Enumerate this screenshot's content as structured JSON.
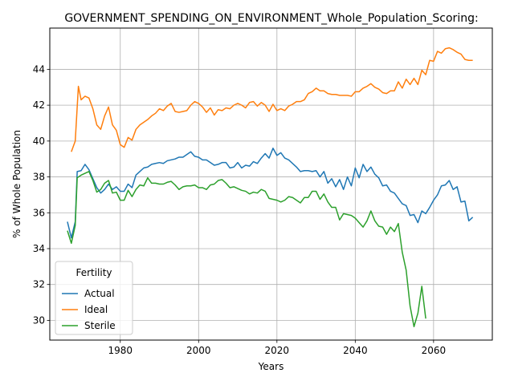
{
  "chart_data": {
    "type": "line",
    "title": "GOVERNMENT_SPENDING_ON_ENVIRONMENT_Whole_Population_Scoring:",
    "xlabel": "Years",
    "ylabel": "% of Whole Population",
    "xlim": [
      1962,
      2075
    ],
    "ylim": [
      28.9,
      46.3
    ],
    "xticks": [
      1980,
      2000,
      2020,
      2040,
      2060
    ],
    "yticks": [
      30,
      32,
      34,
      36,
      38,
      40,
      42,
      44
    ],
    "grid": true,
    "legend": {
      "title": "Fertility",
      "placement": "lower-left"
    },
    "series": [
      {
        "name": "Actual",
        "color": "#1f77b4",
        "points": [
          [
            1966.5,
            35.5
          ],
          [
            1967.5,
            34.6
          ],
          [
            1968.5,
            35.5
          ],
          [
            1969,
            38.3
          ],
          [
            1970,
            38.35
          ],
          [
            1971,
            38.7
          ],
          [
            1972,
            38.4
          ],
          [
            1973,
            37.9
          ],
          [
            1974,
            37.4
          ],
          [
            1975,
            37.1
          ],
          [
            1976,
            37.3
          ],
          [
            1977,
            37.6
          ],
          [
            1978,
            37.3
          ],
          [
            1979,
            37.45
          ],
          [
            1980,
            37.2
          ],
          [
            1981,
            37.2
          ],
          [
            1982,
            37.6
          ],
          [
            1983,
            37.4
          ],
          [
            1984,
            38.1
          ],
          [
            1985,
            38.3
          ],
          [
            1986,
            38.5
          ],
          [
            1987,
            38.55
          ],
          [
            1988,
            38.7
          ],
          [
            1989,
            38.75
          ],
          [
            1990,
            38.8
          ],
          [
            1991,
            38.75
          ],
          [
            1992,
            38.9
          ],
          [
            1993,
            38.95
          ],
          [
            1994,
            39.0
          ],
          [
            1995,
            39.1
          ],
          [
            1996,
            39.1
          ],
          [
            1997,
            39.25
          ],
          [
            1998,
            39.4
          ],
          [
            1999,
            39.15
          ],
          [
            2000,
            39.1
          ],
          [
            2001,
            38.95
          ],
          [
            2002,
            38.95
          ],
          [
            2003,
            38.8
          ],
          [
            2004,
            38.65
          ],
          [
            2005,
            38.7
          ],
          [
            2006,
            38.8
          ],
          [
            2007,
            38.8
          ],
          [
            2008,
            38.5
          ],
          [
            2009,
            38.55
          ],
          [
            2010,
            38.8
          ],
          [
            2011,
            38.5
          ],
          [
            2012,
            38.65
          ],
          [
            2013,
            38.6
          ],
          [
            2014,
            38.85
          ],
          [
            2015,
            38.75
          ],
          [
            2016,
            39.05
          ],
          [
            2017,
            39.3
          ],
          [
            2018,
            39.05
          ],
          [
            2019,
            39.6
          ],
          [
            2020,
            39.2
          ],
          [
            2021,
            39.35
          ],
          [
            2022,
            39.05
          ],
          [
            2023,
            38.95
          ],
          [
            2024,
            38.75
          ],
          [
            2025,
            38.55
          ],
          [
            2026,
            38.3
          ],
          [
            2027,
            38.35
          ],
          [
            2028,
            38.35
          ],
          [
            2029,
            38.3
          ],
          [
            2030,
            38.35
          ],
          [
            2031,
            38.0
          ],
          [
            2032,
            38.3
          ],
          [
            2033,
            37.65
          ],
          [
            2034,
            37.9
          ],
          [
            2035,
            37.45
          ],
          [
            2036,
            37.85
          ],
          [
            2037,
            37.3
          ],
          [
            2038,
            38.0
          ],
          [
            2039,
            37.5
          ],
          [
            2040,
            38.5
          ],
          [
            2041,
            37.95
          ],
          [
            2042,
            38.7
          ],
          [
            2043,
            38.3
          ],
          [
            2044,
            38.55
          ],
          [
            2045,
            38.15
          ],
          [
            2046,
            37.95
          ],
          [
            2047,
            37.5
          ],
          [
            2048,
            37.55
          ],
          [
            2049,
            37.2
          ],
          [
            2050,
            37.1
          ],
          [
            2051,
            36.8
          ],
          [
            2052,
            36.5
          ],
          [
            2053,
            36.4
          ],
          [
            2054,
            35.85
          ],
          [
            2055,
            35.9
          ],
          [
            2056,
            35.45
          ],
          [
            2057,
            36.1
          ],
          [
            2058,
            35.95
          ],
          [
            2059,
            36.3
          ],
          [
            2060,
            36.7
          ],
          [
            2061,
            37.0
          ],
          [
            2062,
            37.5
          ],
          [
            2063,
            37.55
          ],
          [
            2064,
            37.8
          ],
          [
            2065,
            37.3
          ],
          [
            2066,
            37.45
          ],
          [
            2067,
            36.6
          ],
          [
            2068,
            36.65
          ],
          [
            2069,
            35.55
          ],
          [
            2070,
            35.75
          ]
        ]
      },
      {
        "name": "Ideal",
        "color": "#ff7f0e",
        "points": [
          [
            1967.5,
            39.4
          ],
          [
            1968.5,
            40.0
          ],
          [
            1969.3,
            43.05
          ],
          [
            1970,
            42.3
          ],
          [
            1971,
            42.5
          ],
          [
            1972,
            42.4
          ],
          [
            1973,
            41.8
          ],
          [
            1974,
            40.9
          ],
          [
            1975,
            40.65
          ],
          [
            1976,
            41.4
          ],
          [
            1977,
            41.9
          ],
          [
            1978,
            40.9
          ],
          [
            1979,
            40.6
          ],
          [
            1980,
            39.8
          ],
          [
            1981,
            39.65
          ],
          [
            1982,
            40.2
          ],
          [
            1983,
            40.05
          ],
          [
            1984,
            40.65
          ],
          [
            1985,
            40.9
          ],
          [
            1986,
            41.05
          ],
          [
            1987,
            41.2
          ],
          [
            1988,
            41.4
          ],
          [
            1989,
            41.55
          ],
          [
            1990,
            41.8
          ],
          [
            1991,
            41.7
          ],
          [
            1992,
            41.95
          ],
          [
            1993,
            42.1
          ],
          [
            1994,
            41.65
          ],
          [
            1995,
            41.6
          ],
          [
            1996,
            41.65
          ],
          [
            1997,
            41.7
          ],
          [
            1998,
            42.0
          ],
          [
            1999,
            42.2
          ],
          [
            2000,
            42.1
          ],
          [
            2001,
            41.9
          ],
          [
            2002,
            41.6
          ],
          [
            2003,
            41.85
          ],
          [
            2004,
            41.45
          ],
          [
            2005,
            41.75
          ],
          [
            2006,
            41.7
          ],
          [
            2007,
            41.85
          ],
          [
            2008,
            41.8
          ],
          [
            2009,
            42.0
          ],
          [
            2010,
            42.1
          ],
          [
            2011,
            42.0
          ],
          [
            2012,
            41.85
          ],
          [
            2013,
            42.15
          ],
          [
            2014,
            42.2
          ],
          [
            2015,
            41.95
          ],
          [
            2016,
            42.15
          ],
          [
            2017,
            42.0
          ],
          [
            2018,
            41.65
          ],
          [
            2019,
            42.05
          ],
          [
            2020,
            41.7
          ],
          [
            2021,
            41.8
          ],
          [
            2022,
            41.7
          ],
          [
            2023,
            41.95
          ],
          [
            2024,
            42.05
          ],
          [
            2025,
            42.2
          ],
          [
            2026,
            42.2
          ],
          [
            2027,
            42.3
          ],
          [
            2028,
            42.65
          ],
          [
            2029,
            42.75
          ],
          [
            2030,
            42.95
          ],
          [
            2031,
            42.8
          ],
          [
            2032,
            42.8
          ],
          [
            2033,
            42.65
          ],
          [
            2034,
            42.6
          ],
          [
            2035,
            42.6
          ],
          [
            2036,
            42.55
          ],
          [
            2037,
            42.55
          ],
          [
            2038,
            42.55
          ],
          [
            2039,
            42.5
          ],
          [
            2040,
            42.75
          ],
          [
            2041,
            42.75
          ],
          [
            2042,
            42.95
          ],
          [
            2043,
            43.05
          ],
          [
            2044,
            43.2
          ],
          [
            2045,
            43.0
          ],
          [
            2046,
            42.9
          ],
          [
            2047,
            42.7
          ],
          [
            2048,
            42.65
          ],
          [
            2049,
            42.8
          ],
          [
            2050,
            42.8
          ],
          [
            2051,
            43.3
          ],
          [
            2052,
            42.95
          ],
          [
            2053,
            43.45
          ],
          [
            2054,
            43.15
          ],
          [
            2055,
            43.5
          ],
          [
            2056,
            43.15
          ],
          [
            2057,
            43.95
          ],
          [
            2058,
            43.7
          ],
          [
            2059,
            44.5
          ],
          [
            2060,
            44.45
          ],
          [
            2061,
            45.0
          ],
          [
            2062,
            44.9
          ],
          [
            2063,
            45.15
          ],
          [
            2064,
            45.2
          ],
          [
            2065,
            45.1
          ],
          [
            2066,
            44.95
          ],
          [
            2067,
            44.85
          ],
          [
            2068,
            44.55
          ],
          [
            2069,
            44.5
          ],
          [
            2070,
            44.5
          ]
        ]
      },
      {
        "name": "Sterile",
        "color": "#2ca02c",
        "points": [
          [
            1966.5,
            35.0
          ],
          [
            1967.5,
            34.3
          ],
          [
            1968.5,
            35.3
          ],
          [
            1969,
            37.95
          ],
          [
            1970,
            38.1
          ],
          [
            1971,
            38.2
          ],
          [
            1972,
            38.3
          ],
          [
            1973,
            37.8
          ],
          [
            1974,
            37.15
          ],
          [
            1975,
            37.3
          ],
          [
            1976,
            37.65
          ],
          [
            1977,
            37.8
          ],
          [
            1978,
            37.1
          ],
          [
            1979,
            37.15
          ],
          [
            1980,
            36.7
          ],
          [
            1981,
            36.7
          ],
          [
            1982,
            37.25
          ],
          [
            1983,
            36.9
          ],
          [
            1984,
            37.3
          ],
          [
            1985,
            37.55
          ],
          [
            1986,
            37.5
          ],
          [
            1987,
            37.95
          ],
          [
            1988,
            37.65
          ],
          [
            1989,
            37.65
          ],
          [
            1990,
            37.6
          ],
          [
            1991,
            37.6
          ],
          [
            1992,
            37.7
          ],
          [
            1993,
            37.75
          ],
          [
            1994,
            37.55
          ],
          [
            1995,
            37.3
          ],
          [
            1996,
            37.45
          ],
          [
            1997,
            37.5
          ],
          [
            1998,
            37.5
          ],
          [
            1999,
            37.55
          ],
          [
            2000,
            37.4
          ],
          [
            2001,
            37.4
          ],
          [
            2002,
            37.3
          ],
          [
            2003,
            37.55
          ],
          [
            2004,
            37.6
          ],
          [
            2005,
            37.8
          ],
          [
            2006,
            37.85
          ],
          [
            2007,
            37.65
          ],
          [
            2008,
            37.4
          ],
          [
            2009,
            37.45
          ],
          [
            2010,
            37.35
          ],
          [
            2011,
            37.25
          ],
          [
            2012,
            37.2
          ],
          [
            2013,
            37.05
          ],
          [
            2014,
            37.15
          ],
          [
            2015,
            37.1
          ],
          [
            2016,
            37.3
          ],
          [
            2017,
            37.2
          ],
          [
            2018,
            36.8
          ],
          [
            2019,
            36.75
          ],
          [
            2020,
            36.7
          ],
          [
            2021,
            36.6
          ],
          [
            2022,
            36.7
          ],
          [
            2023,
            36.9
          ],
          [
            2024,
            36.85
          ],
          [
            2025,
            36.7
          ],
          [
            2026,
            36.55
          ],
          [
            2027,
            36.85
          ],
          [
            2028,
            36.85
          ],
          [
            2029,
            37.2
          ],
          [
            2030,
            37.2
          ],
          [
            2031,
            36.75
          ],
          [
            2032,
            37.05
          ],
          [
            2033,
            36.6
          ],
          [
            2034,
            36.3
          ],
          [
            2035,
            36.3
          ],
          [
            2036,
            35.6
          ],
          [
            2037,
            35.95
          ],
          [
            2038,
            35.9
          ],
          [
            2039,
            35.85
          ],
          [
            2040,
            35.7
          ],
          [
            2041,
            35.45
          ],
          [
            2042,
            35.2
          ],
          [
            2043,
            35.55
          ],
          [
            2044,
            36.1
          ],
          [
            2045,
            35.55
          ],
          [
            2046,
            35.25
          ],
          [
            2047,
            35.2
          ],
          [
            2048,
            34.8
          ],
          [
            2049,
            35.2
          ],
          [
            2050,
            34.95
          ],
          [
            2051,
            35.4
          ],
          [
            2052,
            33.8
          ],
          [
            2053,
            32.8
          ],
          [
            2054,
            30.8
          ],
          [
            2055,
            29.65
          ],
          [
            2056,
            30.4
          ],
          [
            2057,
            31.9
          ],
          [
            2058,
            30.1
          ]
        ]
      }
    ]
  }
}
